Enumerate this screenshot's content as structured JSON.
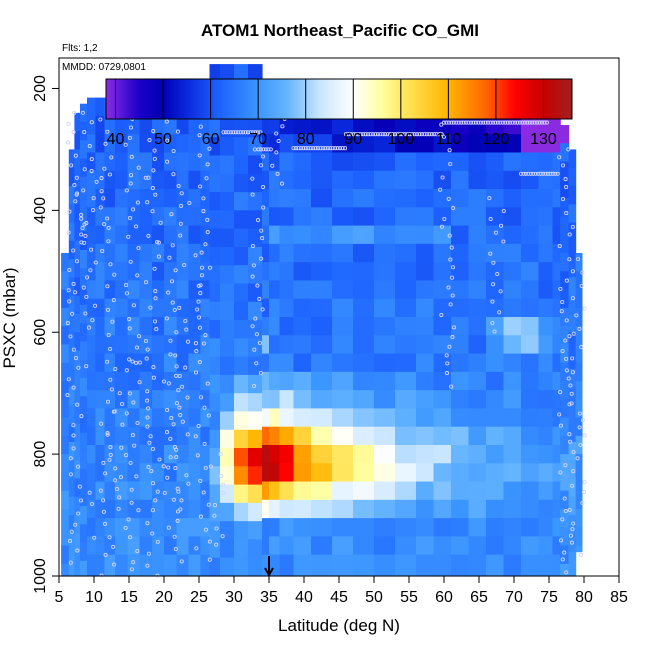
{
  "chart_data": {
    "type": "heatmap",
    "title": "ATOM1 Northeast_Pacific CO_GMI",
    "flights_label": "Flts: 1,2",
    "date_label": "MMDD: 0729,0801",
    "xlabel": "Latitude (deg N)",
    "ylabel": "PSXC (mbar)",
    "xlim": [
      5,
      85
    ],
    "ylim": [
      1000,
      150
    ],
    "y_reversed": true,
    "x_ticks": [
      5,
      10,
      15,
      20,
      25,
      30,
      35,
      40,
      45,
      50,
      55,
      60,
      65,
      70,
      75,
      80,
      85
    ],
    "y_ticks": [
      200,
      400,
      600,
      800,
      1000
    ],
    "colorbar": {
      "min": 38,
      "max": 136,
      "ticks": [
        40,
        50,
        60,
        70,
        80,
        90,
        100,
        110,
        120,
        130
      ],
      "stops": [
        {
          "v": 38,
          "c": "#8a2be2"
        },
        {
          "v": 45,
          "c": "#1a00c8"
        },
        {
          "v": 50,
          "c": "#0000b4"
        },
        {
          "v": 55,
          "c": "#0a28dc"
        },
        {
          "v": 62,
          "c": "#1e64ff"
        },
        {
          "v": 70,
          "c": "#3c96ff"
        },
        {
          "v": 76,
          "c": "#64b4ff"
        },
        {
          "v": 83,
          "c": "#c8e6ff"
        },
        {
          "v": 90,
          "c": "#ffffff"
        },
        {
          "v": 96,
          "c": "#ffffa0"
        },
        {
          "v": 102,
          "c": "#ffe050"
        },
        {
          "v": 110,
          "c": "#ffb400"
        },
        {
          "v": 118,
          "c": "#ff6400"
        },
        {
          "v": 124,
          "c": "#ff0000"
        },
        {
          "v": 130,
          "c": "#c80000"
        },
        {
          "v": 136,
          "c": "#a02020"
        }
      ]
    },
    "marker_latitude": 35
  }
}
